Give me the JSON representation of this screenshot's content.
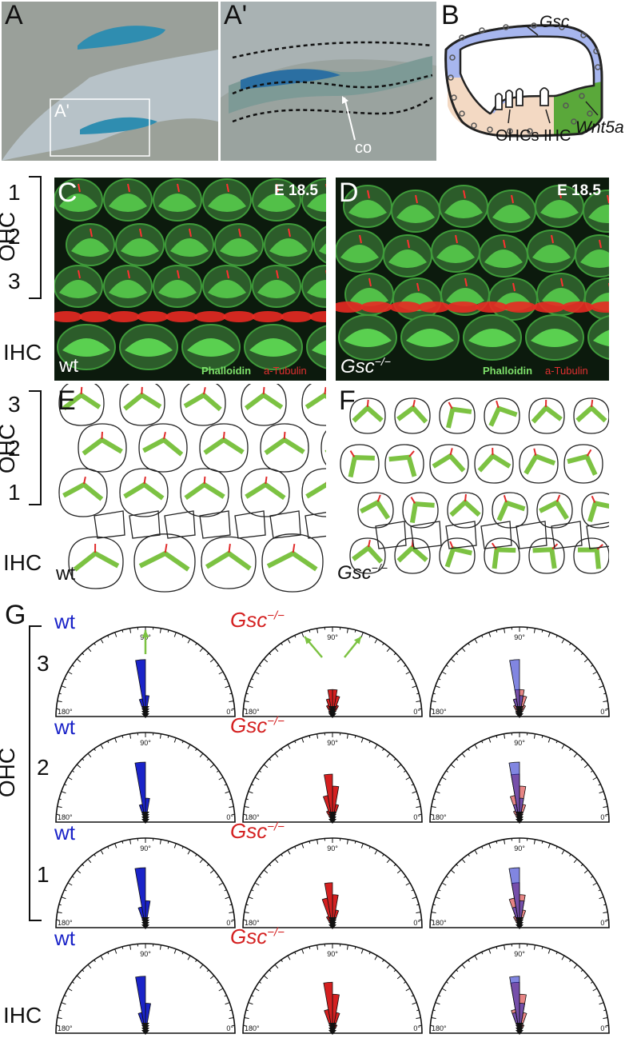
{
  "panels": {
    "A": "A",
    "A_prime": "A'",
    "B": "B",
    "C": "C",
    "D": "D",
    "E": "E",
    "F": "F",
    "G": "G"
  },
  "panel_A": {
    "inset_label": "A'"
  },
  "panel_A_prime": {
    "annotation": "co"
  },
  "panel_B": {
    "labels": {
      "gsc": "Gsc",
      "wnt5a": "Wnt5a",
      "ohcs": "OHCs",
      "ihc": "IHC"
    },
    "colors": {
      "gsc_region": "#a7b6ee",
      "wnt5a_region": "#5aa83a",
      "sensory_region": "#f3d9c3"
    }
  },
  "panel_C": {
    "stage": "E 18.5",
    "genotype": "wt",
    "stain_green": "Phalloidin",
    "stain_red": "a-Tubulin"
  },
  "panel_D": {
    "stage": "E 18.5",
    "genotype": "Gsc",
    "genotype_sup": "−/−",
    "stain_green": "Phalloidin",
    "stain_red": "a-Tubulin"
  },
  "rows_CD": {
    "group": "OHC",
    "r1": "1",
    "r2": "2",
    "r3": "3",
    "ihc": "IHC"
  },
  "rows_EF": {
    "group": "OHC",
    "r3": "3",
    "r2": "2",
    "r1": "1",
    "ihc": "IHC"
  },
  "panel_E": {
    "genotype": "wt"
  },
  "panel_F": {
    "genotype": "Gsc",
    "genotype_sup": "−/−"
  },
  "panel_G": {
    "group": "OHC",
    "row_labels": [
      "3",
      "2",
      "1",
      "IHC"
    ],
    "wt_label": "wt",
    "mut_label": "Gsc",
    "mut_sup": "−/−",
    "deg_90": "90°",
    "deg_180": "180°",
    "deg_0": "0°"
  },
  "colors": {
    "wt": "#1a23c8",
    "mutant": "#d42020",
    "stereocilia": "#7cc242",
    "kinocilium": "#e02a2a"
  },
  "chart_data": {
    "type": "polar-histogram",
    "angle_range_deg": [
      0,
      180
    ],
    "bin_width_deg": 10,
    "rows": [
      {
        "row": "3",
        "wt": [
          0,
          0,
          0,
          0,
          0,
          0,
          0,
          0,
          0.35,
          0.95,
          0.3,
          0,
          0,
          0,
          0,
          0,
          0,
          0
        ],
        "gsc": [
          0,
          0,
          0,
          0,
          0,
          0,
          0.2,
          0.35,
          0.45,
          0.45,
          0.3,
          0.2,
          0.1,
          0,
          0,
          0,
          0,
          0
        ]
      },
      {
        "row": "2",
        "wt": [
          0,
          0,
          0,
          0,
          0,
          0,
          0,
          0,
          0.4,
          1.0,
          0.3,
          0,
          0,
          0,
          0,
          0,
          0,
          0
        ],
        "gsc": [
          0,
          0,
          0,
          0,
          0,
          0,
          0.1,
          0.3,
          0.6,
          0.8,
          0.45,
          0.2,
          0,
          0,
          0,
          0,
          0,
          0
        ]
      },
      {
        "row": "1",
        "wt": [
          0,
          0,
          0,
          0,
          0,
          0,
          0,
          0,
          0.45,
          1.0,
          0.35,
          0,
          0,
          0,
          0,
          0,
          0,
          0
        ],
        "gsc": [
          0,
          0,
          0,
          0,
          0,
          0,
          0.1,
          0.3,
          0.55,
          0.75,
          0.5,
          0.2,
          0,
          0,
          0,
          0,
          0,
          0
        ]
      },
      {
        "row": "IHC",
        "wt": [
          0,
          0,
          0,
          0,
          0,
          0,
          0,
          0,
          0.5,
          0.95,
          0.35,
          0,
          0,
          0,
          0,
          0,
          0,
          0
        ],
        "gsc": [
          0,
          0,
          0,
          0,
          0,
          0,
          0.15,
          0.35,
          0.65,
          0.85,
          0.4,
          0.1,
          0,
          0,
          0,
          0,
          0,
          0
        ]
      }
    ]
  }
}
